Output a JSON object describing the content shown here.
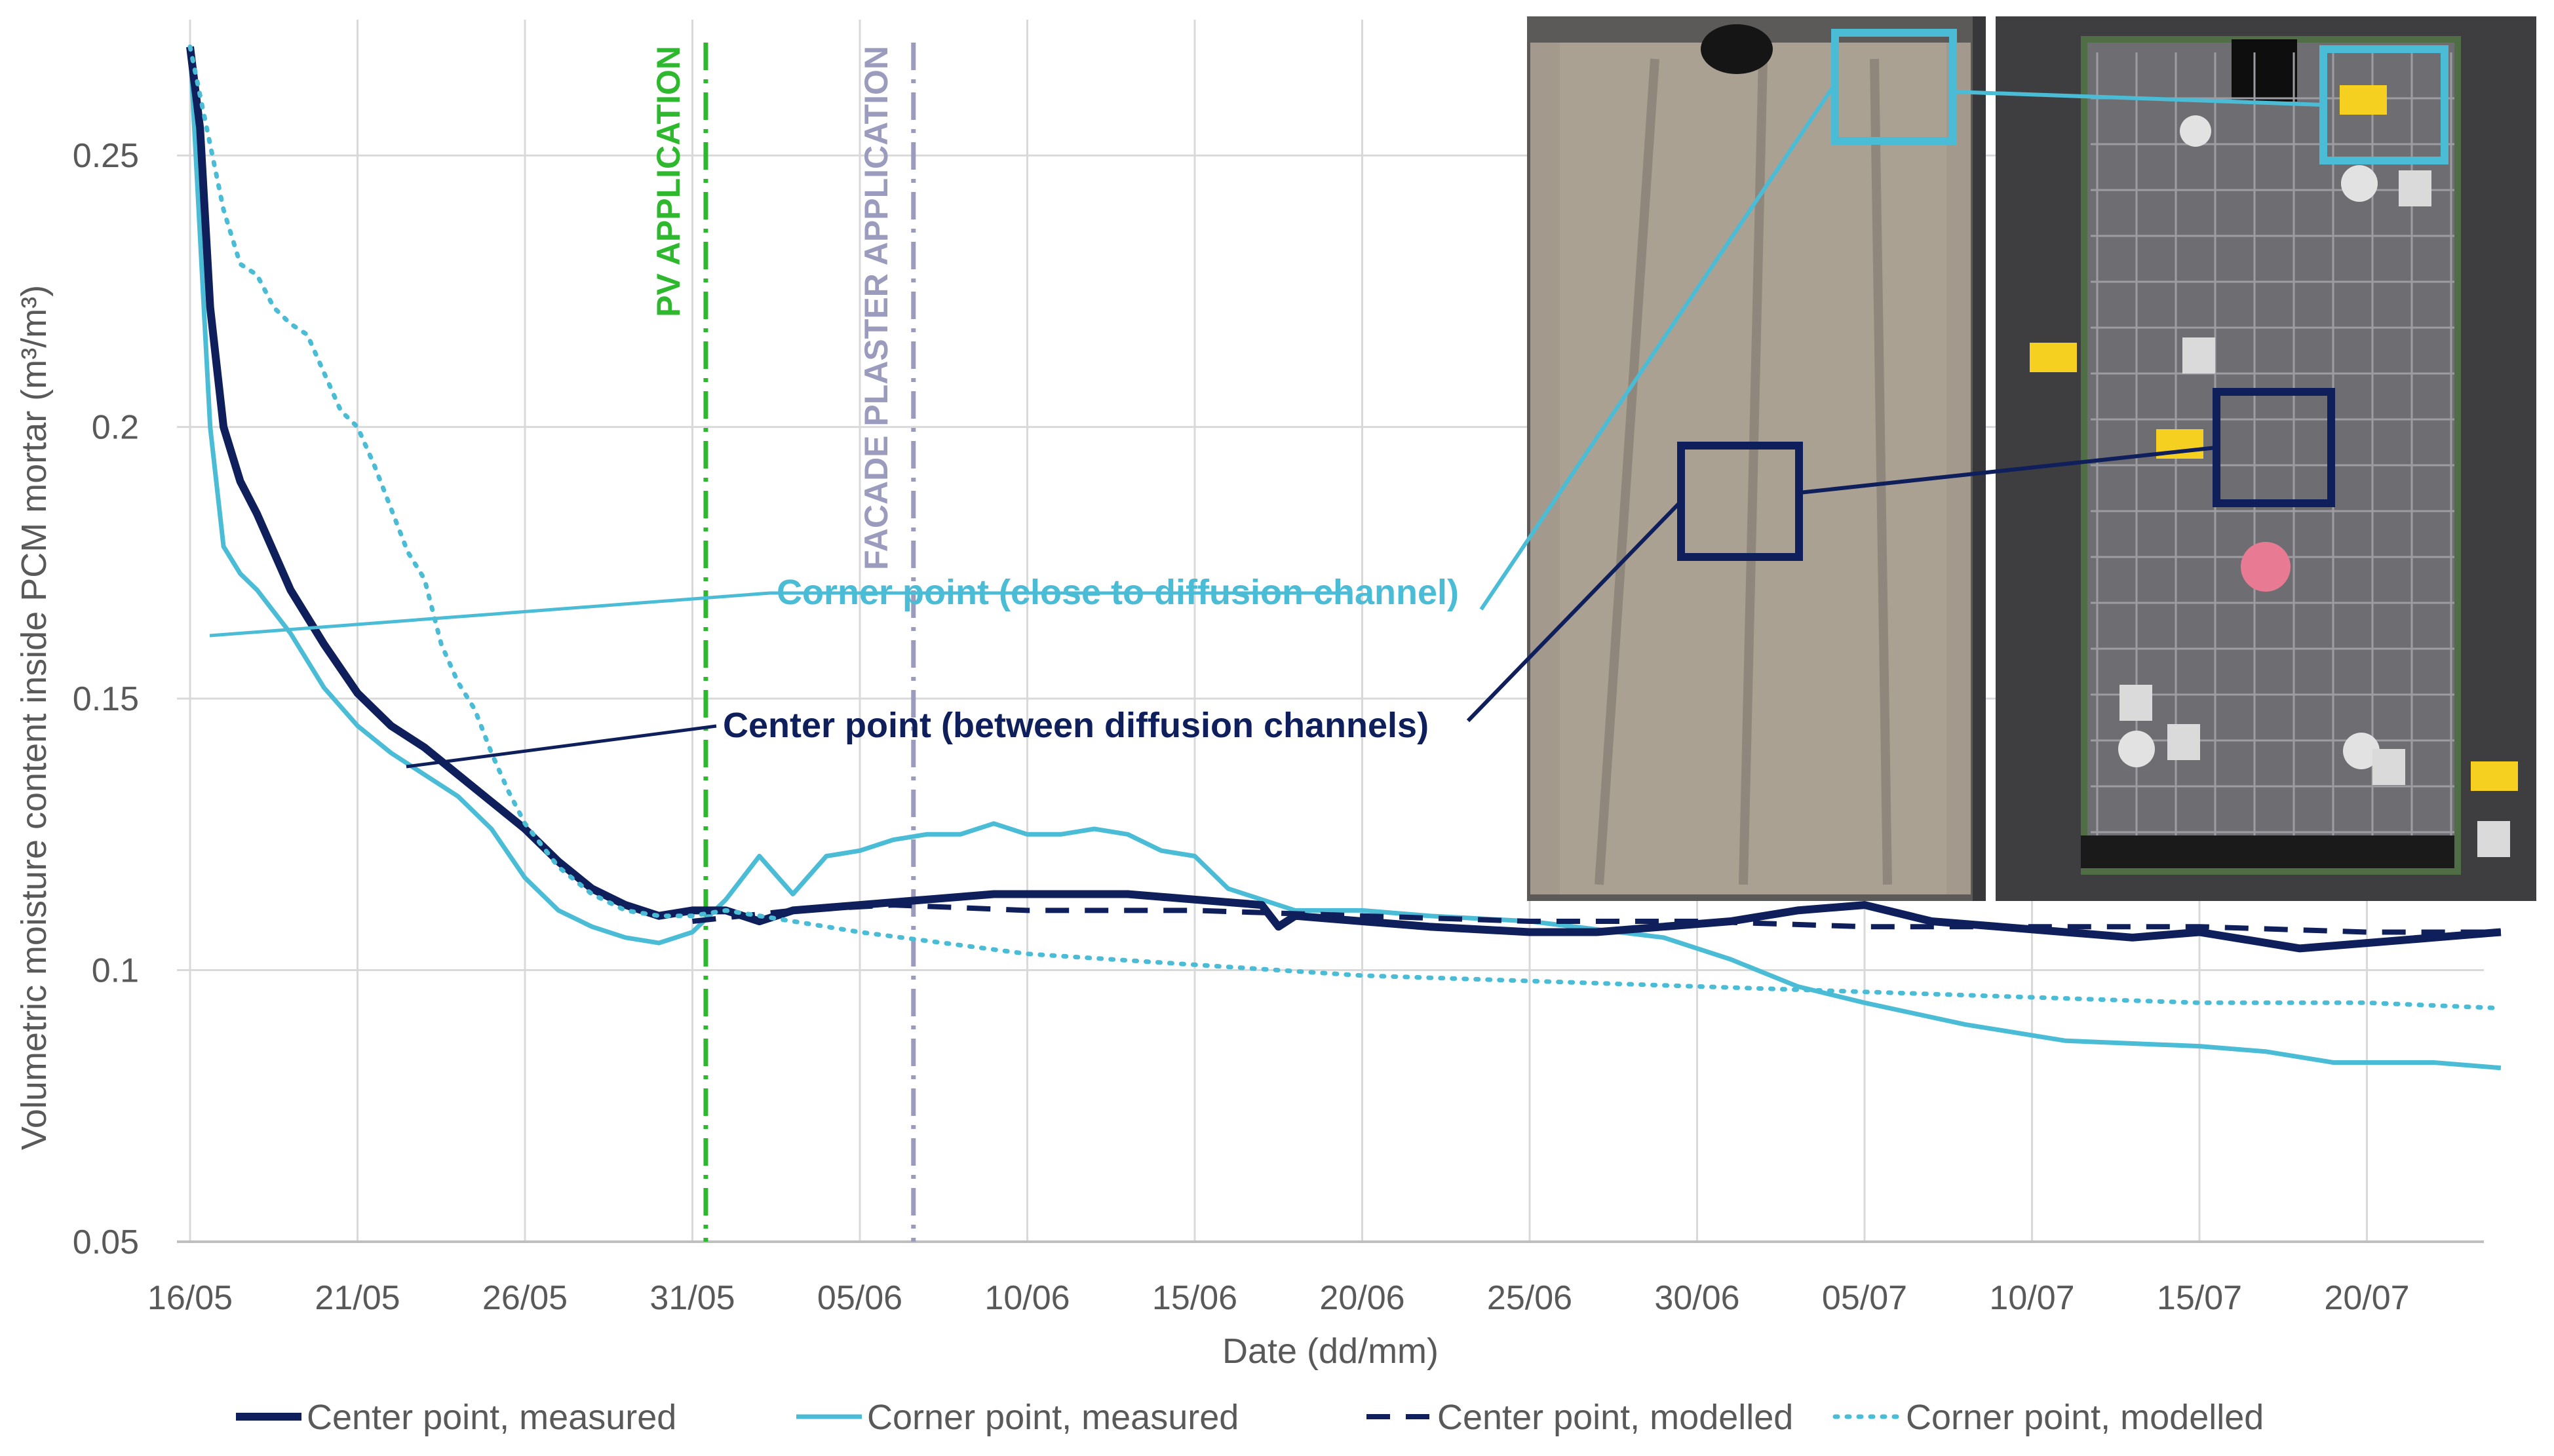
{
  "chart_data": {
    "type": "line",
    "xlabel": "Date (dd/mm)",
    "ylabel": "Volumetric moisture content inside PCM mortar (m³/m³)",
    "x_tick_labels": [
      "16/05",
      "21/05",
      "26/05",
      "31/05",
      "05/06",
      "10/06",
      "15/06",
      "20/06",
      "25/06",
      "30/06",
      "05/07",
      "10/07",
      "15/07",
      "20/07"
    ],
    "y_tick_labels": [
      "0.05",
      "0.1",
      "0.15",
      "0.2",
      "0.25"
    ],
    "y_ticks": [
      0.05,
      0.1,
      0.15,
      0.2,
      0.25
    ],
    "ylim": [
      0.05,
      0.275
    ],
    "xlim_days": [
      0,
      69
    ],
    "grid": "vertical lines at x ticks, horizontal lines at y ticks",
    "legend_position": "bottom",
    "events": [
      {
        "label": "PV APPLICATION",
        "day": 15.4,
        "color": "#2db82d",
        "style": "dash-dot"
      },
      {
        "label": "FACADE PLASTER APPLICATION",
        "day": 21.6,
        "color": "#9b9bbd",
        "style": "dash-dot"
      }
    ],
    "annotations": [
      {
        "text": "Corner point (close to diffusion channel)",
        "color": "#4bbcd6"
      },
      {
        "text": "Center point (between diffusion channels)",
        "color": "#0f1f5c"
      }
    ],
    "series": [
      {
        "name": "Center point, measured",
        "color": "#0f1f5c",
        "style": "solid-thick",
        "points": [
          [
            0,
            0.27
          ],
          [
            0.3,
            0.255
          ],
          [
            0.6,
            0.222
          ],
          [
            1,
            0.2
          ],
          [
            1.5,
            0.19
          ],
          [
            2,
            0.184
          ],
          [
            3,
            0.17
          ],
          [
            4,
            0.16
          ],
          [
            5,
            0.151
          ],
          [
            6,
            0.145
          ],
          [
            7,
            0.141
          ],
          [
            8,
            0.136
          ],
          [
            9,
            0.131
          ],
          [
            10,
            0.126
          ],
          [
            11,
            0.12
          ],
          [
            12,
            0.115
          ],
          [
            13,
            0.112
          ],
          [
            14,
            0.11
          ],
          [
            15,
            0.111
          ],
          [
            16,
            0.111
          ],
          [
            17,
            0.109
          ],
          [
            18,
            0.111
          ],
          [
            20,
            0.112
          ],
          [
            22,
            0.113
          ],
          [
            24,
            0.114
          ],
          [
            26,
            0.114
          ],
          [
            28,
            0.114
          ],
          [
            30,
            0.113
          ],
          [
            32,
            0.112
          ],
          [
            32.5,
            0.108
          ],
          [
            33,
            0.11
          ],
          [
            35,
            0.109
          ],
          [
            37,
            0.108
          ],
          [
            40,
            0.107
          ],
          [
            42,
            0.107
          ],
          [
            44,
            0.108
          ],
          [
            46,
            0.109
          ],
          [
            48,
            0.111
          ],
          [
            50,
            0.112
          ],
          [
            52,
            0.109
          ],
          [
            54,
            0.108
          ],
          [
            56,
            0.107
          ],
          [
            58,
            0.106
          ],
          [
            60,
            0.107
          ],
          [
            62,
            0.105
          ],
          [
            63,
            0.104
          ],
          [
            65,
            0.105
          ],
          [
            67,
            0.106
          ],
          [
            69,
            0.107
          ]
        ]
      },
      {
        "name": "Corner point, measured",
        "color": "#4bbcd6",
        "style": "solid",
        "points": [
          [
            0,
            0.27
          ],
          [
            0.3,
            0.235
          ],
          [
            0.6,
            0.2
          ],
          [
            1,
            0.178
          ],
          [
            1.5,
            0.173
          ],
          [
            2,
            0.17
          ],
          [
            3,
            0.162
          ],
          [
            4,
            0.152
          ],
          [
            5,
            0.145
          ],
          [
            6,
            0.14
          ],
          [
            7,
            0.136
          ],
          [
            8,
            0.132
          ],
          [
            9,
            0.126
          ],
          [
            10,
            0.117
          ],
          [
            11,
            0.111
          ],
          [
            12,
            0.108
          ],
          [
            13,
            0.106
          ],
          [
            14,
            0.105
          ],
          [
            15,
            0.107
          ],
          [
            15.5,
            0.11
          ],
          [
            16,
            0.113
          ],
          [
            17,
            0.121
          ],
          [
            18,
            0.114
          ],
          [
            19,
            0.121
          ],
          [
            20,
            0.122
          ],
          [
            21,
            0.124
          ],
          [
            22,
            0.125
          ],
          [
            23,
            0.125
          ],
          [
            24,
            0.127
          ],
          [
            25,
            0.125
          ],
          [
            26,
            0.125
          ],
          [
            27,
            0.126
          ],
          [
            28,
            0.125
          ],
          [
            29,
            0.122
          ],
          [
            30,
            0.121
          ],
          [
            31,
            0.115
          ],
          [
            32,
            0.113
          ],
          [
            33,
            0.111
          ],
          [
            35,
            0.111
          ],
          [
            37,
            0.11
          ],
          [
            40,
            0.109
          ],
          [
            44,
            0.106
          ],
          [
            46,
            0.102
          ],
          [
            48,
            0.097
          ],
          [
            50,
            0.094
          ],
          [
            53,
            0.09
          ],
          [
            56,
            0.087
          ],
          [
            60,
            0.086
          ],
          [
            62,
            0.085
          ],
          [
            64,
            0.083
          ],
          [
            67,
            0.083
          ],
          [
            69,
            0.082
          ]
        ]
      },
      {
        "name": "Center point, modelled",
        "color": "#0f1f5c",
        "style": "dashed",
        "points": [
          [
            15,
            0.109
          ],
          [
            18,
            0.111
          ],
          [
            21,
            0.112
          ],
          [
            25,
            0.111
          ],
          [
            30,
            0.111
          ],
          [
            35,
            0.11
          ],
          [
            40,
            0.109
          ],
          [
            45,
            0.109
          ],
          [
            50,
            0.108
          ],
          [
            55,
            0.108
          ],
          [
            60,
            0.108
          ],
          [
            65,
            0.107
          ],
          [
            69,
            0.107
          ]
        ]
      },
      {
        "name": "Corner point, modelled",
        "color": "#4bbcd6",
        "style": "dotted",
        "points": [
          [
            0,
            0.27
          ],
          [
            1,
            0.24
          ],
          [
            1.5,
            0.23
          ],
          [
            2,
            0.228
          ],
          [
            2.5,
            0.222
          ],
          [
            3,
            0.219
          ],
          [
            3.5,
            0.217
          ],
          [
            4,
            0.21
          ],
          [
            4.5,
            0.203
          ],
          [
            5,
            0.2
          ],
          [
            5.5,
            0.193
          ],
          [
            6,
            0.185
          ],
          [
            6.5,
            0.177
          ],
          [
            7,
            0.172
          ],
          [
            7.5,
            0.16
          ],
          [
            8,
            0.153
          ],
          [
            8.5,
            0.148
          ],
          [
            9,
            0.14
          ],
          [
            9.5,
            0.133
          ],
          [
            10,
            0.127
          ],
          [
            11,
            0.119
          ],
          [
            12,
            0.114
          ],
          [
            13,
            0.111
          ],
          [
            14,
            0.11
          ],
          [
            15,
            0.11
          ],
          [
            16,
            0.111
          ],
          [
            17,
            0.11
          ],
          [
            20,
            0.107
          ],
          [
            25,
            0.103
          ],
          [
            30,
            0.101
          ],
          [
            35,
            0.099
          ],
          [
            40,
            0.098
          ],
          [
            45,
            0.097
          ],
          [
            50,
            0.096
          ],
          [
            55,
            0.095
          ],
          [
            60,
            0.094
          ],
          [
            65,
            0.094
          ],
          [
            69,
            0.093
          ]
        ]
      }
    ]
  }
}
